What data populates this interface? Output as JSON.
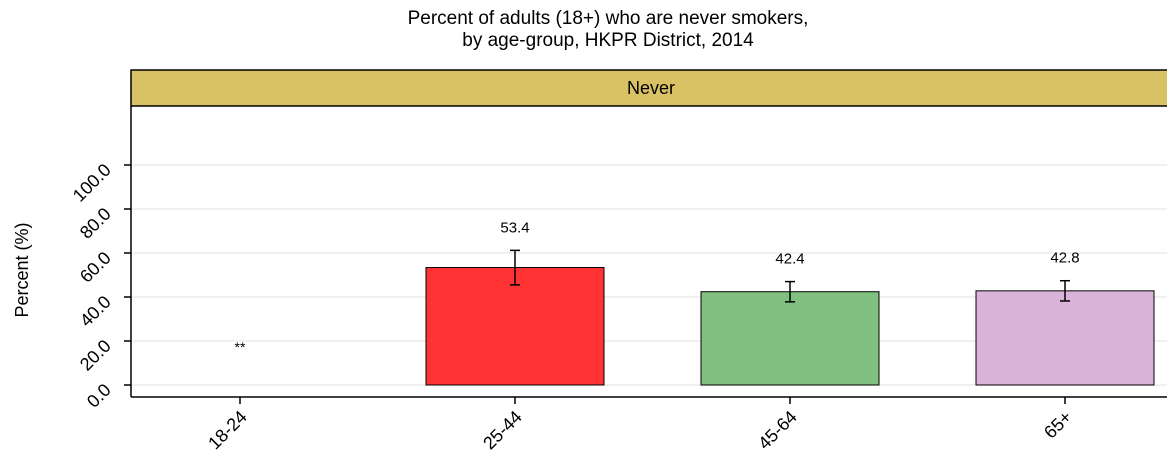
{
  "chart_data": {
    "type": "bar",
    "title": "Percent of adults (18+) who are never smokers,",
    "subtitle": "by age-group, HKPR District, 2014",
    "facet_label": "Never",
    "ylabel": "Percent (%)",
    "xlabel": "",
    "ylim": [
      0,
      100
    ],
    "y_ticks": [
      "0.0",
      "20.0",
      "40.0",
      "60.0",
      "80.0",
      "100.0"
    ],
    "grid": true,
    "categories": [
      "18-24",
      "25-44",
      "45-64",
      "65+"
    ],
    "values": [
      null,
      53.4,
      42.4,
      42.8
    ],
    "data_labels": [
      "**",
      "53.4",
      "42.4",
      "42.8"
    ],
    "ci_lower": [
      null,
      45.5,
      37.8,
      38.2
    ],
    "ci_upper": [
      null,
      61.2,
      47.0,
      47.4
    ],
    "bar_colors": [
      "#ffffff",
      "#ff3333",
      "#80c080",
      "#d9b3d9"
    ],
    "strip_color": "#d9c266",
    "grid_color": "#e0e0e0"
  }
}
